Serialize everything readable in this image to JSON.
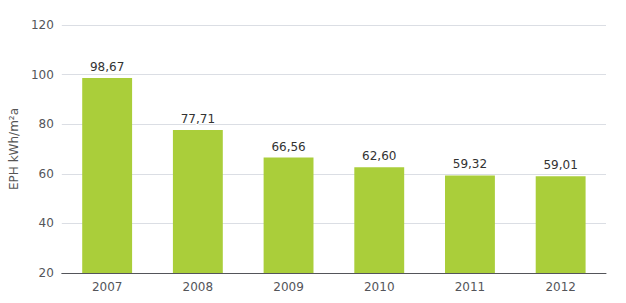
{
  "chart_data": {
    "type": "bar",
    "ylabel": "EPH kWh/m²a",
    "categories": [
      "2007",
      "2008",
      "2009",
      "2010",
      "2011",
      "2012"
    ],
    "values": [
      98.67,
      77.71,
      66.56,
      62.6,
      59.32,
      59.01
    ],
    "value_labels": [
      "98,67",
      "77,71",
      "66,56",
      "62,60",
      "59,32",
      "59,01"
    ],
    "data_labels": true,
    "color": "#aace3a",
    "ylim": [
      20,
      120
    ],
    "yticks": [
      20,
      40,
      60,
      80,
      100,
      120
    ],
    "grid": true
  }
}
